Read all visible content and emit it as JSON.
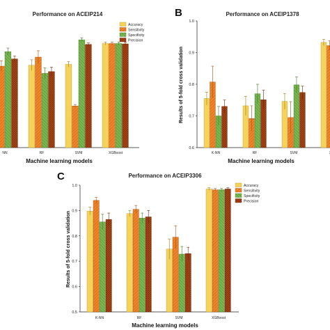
{
  "chart_data": [
    {
      "type": "bar",
      "panel_label": "",
      "title": "Performance on ACEIP214",
      "xlabel": "Machine learning models",
      "ylabel": "",
      "categories": [
        "K-NN",
        "RF",
        "SVM",
        "XGBoost"
      ],
      "category_labels": [
        "NN",
        "RF",
        "SVM",
        "XGBoost"
      ],
      "ylim": [
        0.3,
        1.0
      ],
      "yticks": [],
      "series": [
        {
          "name": "Accuracy",
          "values": [
            0.83,
            0.755,
            0.76,
            0.875
          ],
          "errors": [
            0.02,
            0.03,
            0.015,
            0.008
          ]
        },
        {
          "name": "Sensitivity",
          "values": [
            0.75,
            0.8,
            0.53,
            0.875
          ],
          "errors": [
            0.03,
            0.035,
            0.008,
            0.008
          ]
        },
        {
          "name": "Specificity",
          "values": [
            0.83,
            0.71,
            0.895,
            0.875
          ],
          "errors": [
            0.02,
            0.03,
            0.01,
            0.008
          ]
        },
        {
          "name": "Precision",
          "values": [
            0.79,
            0.72,
            0.87,
            0.873
          ],
          "errors": [
            0.015,
            0.025,
            0.008,
            0.008
          ]
        }
      ],
      "legend": "top-right",
      "grid": false
    },
    {
      "type": "bar",
      "panel_label": "B",
      "title": "Performance on ACEIP1378",
      "xlabel": "Machine learning models",
      "ylabel": "Results of 5-fold cross validation",
      "categories": [
        "K-NN",
        "RF",
        "SVM",
        "XGBoost"
      ],
      "category_labels": [
        "K-NN",
        "RF",
        "SVM",
        "XGB"
      ],
      "ylim": [
        0.6,
        1.0
      ],
      "yticks": [
        "0.6",
        "0.7",
        "0.8",
        "0.9",
        "1.0"
      ],
      "series": [
        {
          "name": "Accuracy",
          "values": [
            0.755,
            0.732,
            0.746,
            0.932
          ],
          "errors": [
            0.02,
            0.03,
            0.025,
            0.01
          ]
        },
        {
          "name": "Sensitivity",
          "values": [
            0.807,
            0.692,
            0.695,
            0.922
          ],
          "errors": [
            0.05,
            0.04,
            0.05,
            0.015
          ]
        },
        {
          "name": "Specificity",
          "values": [
            0.7,
            0.77,
            0.798,
            0.922
          ],
          "errors": [
            0.03,
            0.03,
            0.025,
            0.01
          ]
        },
        {
          "name": "Precision",
          "values": [
            0.73,
            0.751,
            0.774,
            0.92
          ],
          "errors": [
            0.02,
            0.03,
            0.02,
            0.01
          ]
        }
      ],
      "legend": "none",
      "grid": false
    },
    {
      "type": "bar",
      "panel_label": "C",
      "title": "Performance on ACEIP3306",
      "xlabel": "Machine learning models",
      "ylabel": "Results of 5-fold cross validation",
      "categories": [
        "K-NN",
        "RF",
        "SVM",
        "XGBoost"
      ],
      "category_labels": [
        "K-NN",
        "RF",
        "SVM",
        "XGBoost"
      ],
      "ylim": [
        0.5,
        1.0
      ],
      "yticks": [
        "0.5",
        "0.6",
        "0.7",
        "0.8",
        "0.9",
        "1.0"
      ],
      "series": [
        {
          "name": "Accuracy",
          "values": [
            0.898,
            0.888,
            0.748,
            0.985
          ],
          "errors": [
            0.015,
            0.012,
            0.04,
            0.005
          ]
        },
        {
          "name": "Sensitivity",
          "values": [
            0.94,
            0.905,
            0.795,
            0.982
          ],
          "errors": [
            0.012,
            0.015,
            0.045,
            0.005
          ]
        },
        {
          "name": "Specificity",
          "values": [
            0.855,
            0.87,
            0.728,
            0.982
          ],
          "errors": [
            0.03,
            0.02,
            0.03,
            0.005
          ]
        },
        {
          "name": "Precision",
          "values": [
            0.865,
            0.875,
            0.73,
            0.985
          ],
          "errors": [
            0.025,
            0.025,
            0.025,
            0.005
          ]
        }
      ],
      "legend": "top-right",
      "grid": false
    }
  ],
  "colors": {
    "Accuracy": "#f5d25a",
    "Sensitivity": "#f0852a",
    "Specificity": "#72b048",
    "Precision": "#b24a18"
  }
}
